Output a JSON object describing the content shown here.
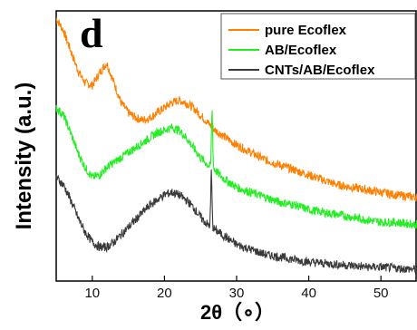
{
  "chart_data": {
    "type": "line",
    "panel_label": "d",
    "xlabel": "2θ（∘）",
    "ylabel": "Intensity (a.u.)",
    "xlim": [
      5,
      55
    ],
    "xticks": [
      10,
      20,
      30,
      40,
      50
    ],
    "y_ticks_shown": false,
    "grid": false,
    "legend_position": "top-right",
    "series": [
      {
        "name": "pure Ecoflex",
        "color": "#ff8000",
        "x": [
          5,
          6,
          7,
          8,
          9,
          10,
          11,
          12,
          13,
          14,
          15,
          16,
          17,
          18,
          19,
          20,
          21,
          22,
          23,
          24,
          25,
          26,
          27,
          28,
          29,
          30,
          32,
          34,
          36,
          38,
          40,
          42,
          44,
          46,
          48,
          50,
          52,
          55
        ],
        "y": [
          1.0,
          0.95,
          0.87,
          0.79,
          0.74,
          0.73,
          0.78,
          0.82,
          0.74,
          0.66,
          0.62,
          0.6,
          0.59,
          0.6,
          0.62,
          0.64,
          0.66,
          0.67,
          0.66,
          0.64,
          0.61,
          0.58,
          0.55,
          0.53,
          0.51,
          0.49,
          0.46,
          0.43,
          0.41,
          0.39,
          0.37,
          0.35,
          0.33,
          0.32,
          0.31,
          0.3,
          0.29,
          0.28
        ]
      },
      {
        "name": "AB/Ecoflex",
        "color": "#22ee22",
        "x": [
          5,
          6,
          7,
          8,
          9,
          10,
          11,
          12,
          13,
          14,
          15,
          16,
          17,
          18,
          19,
          20,
          21,
          22,
          23,
          24,
          25,
          26,
          26.6,
          27,
          28,
          29,
          30,
          32,
          34,
          36,
          38,
          40,
          42,
          44,
          46,
          48,
          50,
          52,
          55
        ],
        "y": [
          0.64,
          0.61,
          0.54,
          0.46,
          0.4,
          0.36,
          0.37,
          0.4,
          0.42,
          0.44,
          0.46,
          0.48,
          0.5,
          0.52,
          0.54,
          0.55,
          0.56,
          0.55,
          0.52,
          0.48,
          0.44,
          0.41,
          0.63,
          0.39,
          0.36,
          0.34,
          0.32,
          0.3,
          0.28,
          0.26,
          0.25,
          0.23,
          0.22,
          0.21,
          0.2,
          0.19,
          0.18,
          0.18,
          0.17
        ]
      },
      {
        "name": "CNTs/AB/Ecoflex",
        "color": "#3a3a3a",
        "x": [
          5,
          6,
          7,
          8,
          9,
          10,
          11,
          12,
          13,
          14,
          15,
          16,
          17,
          18,
          19,
          20,
          21,
          22,
          23,
          24,
          25,
          26,
          26.5,
          27,
          28,
          29,
          30,
          32,
          34,
          36,
          38,
          40,
          42,
          44,
          46,
          48,
          50,
          52,
          55
        ],
        "y": [
          0.36,
          0.33,
          0.27,
          0.2,
          0.14,
          0.1,
          0.08,
          0.08,
          0.1,
          0.13,
          0.16,
          0.19,
          0.22,
          0.25,
          0.27,
          0.29,
          0.3,
          0.29,
          0.27,
          0.24,
          0.2,
          0.17,
          0.38,
          0.15,
          0.13,
          0.11,
          0.09,
          0.07,
          0.05,
          0.04,
          0.03,
          0.02,
          0.015,
          0.01,
          0.005,
          0.0,
          0.0,
          -0.005,
          -0.01
        ]
      }
    ]
  }
}
